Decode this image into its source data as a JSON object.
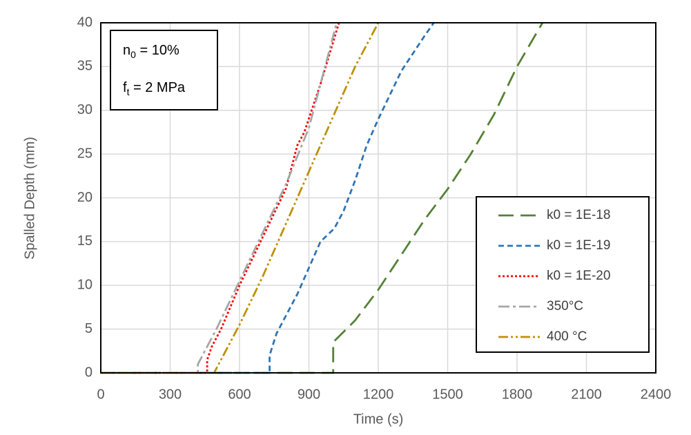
{
  "chart_data": {
    "type": "line",
    "x_label": "Time (s)",
    "y_label": "Spalled Depth (mm)",
    "annotations": [
      {
        "main": "n",
        "subscript": "0",
        "after": " = 10%"
      },
      {
        "main": "f",
        "subscript": "t",
        "after": " = 2 MPa"
      }
    ],
    "xlim": [
      0,
      2400
    ],
    "xticks": [
      0,
      300,
      600,
      900,
      1200,
      1500,
      1800,
      2100,
      2400
    ],
    "ylim": [
      0,
      40
    ],
    "yticks": [
      0,
      5,
      10,
      15,
      20,
      25,
      30,
      35,
      40
    ],
    "grid": true,
    "legend_position": "lower right",
    "series": [
      {
        "name": "k0 = 1E-18",
        "color": "#548235",
        "dash": "long-dash",
        "x": [
          0,
          1005,
          1005,
          1100,
          1200,
          1300,
          1400,
          1500,
          1600,
          1700,
          1800,
          1910
        ],
        "values": [
          0,
          0,
          3.5,
          6,
          9.5,
          13.5,
          17.5,
          21,
          25,
          29.5,
          35,
          40
        ]
      },
      {
        "name": "k0 = 1E-19",
        "color": "#2e75b6",
        "dash": "dash",
        "x": [
          0,
          730,
          730,
          760,
          800,
          850,
          900,
          950,
          1010,
          1050,
          1100,
          1150,
          1200,
          1300,
          1400,
          1440
        ],
        "values": [
          0,
          0,
          2,
          4.5,
          6.5,
          9,
          12,
          15,
          16.5,
          18.5,
          22,
          26,
          29,
          34.5,
          38.5,
          40
        ]
      },
      {
        "name": "k0 = 1E-20",
        "color": "#ff0000",
        "dash": "dot",
        "x": [
          0,
          460,
          460,
          480,
          520,
          600,
          700,
          800,
          850,
          880,
          950,
          1030
        ],
        "values": [
          0,
          0,
          1.5,
          3,
          5,
          10,
          15.5,
          21,
          26,
          27.5,
          33,
          40
        ]
      },
      {
        "name": "350°C",
        "color": "#a6a6a6",
        "dash": "dash-dot",
        "x": [
          0,
          420,
          420,
          450,
          500,
          600,
          700,
          800,
          900,
          1020
        ],
        "values": [
          0,
          0,
          1,
          2.5,
          5,
          10.5,
          16,
          21.5,
          28,
          40
        ]
      },
      {
        "name": "400 °C",
        "color": "#bf9000",
        "dash": "dash-dot-dot",
        "x": [
          0,
          490,
          550,
          600,
          700,
          800,
          900,
          1000,
          1100,
          1200
        ],
        "values": [
          0,
          0,
          3,
          5.5,
          11,
          17,
          23,
          29,
          35,
          40
        ]
      }
    ]
  }
}
